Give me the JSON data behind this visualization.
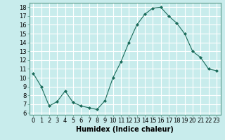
{
  "x": [
    0,
    1,
    2,
    3,
    4,
    5,
    6,
    7,
    8,
    9,
    10,
    11,
    12,
    13,
    14,
    15,
    16,
    17,
    18,
    19,
    20,
    21,
    22,
    23
  ],
  "y": [
    10.5,
    9.0,
    6.8,
    7.3,
    8.5,
    7.2,
    6.8,
    6.6,
    6.4,
    7.4,
    10.0,
    11.8,
    14.0,
    16.0,
    17.2,
    17.9,
    18.0,
    17.0,
    16.2,
    15.0,
    13.0,
    12.3,
    11.0,
    10.8
  ],
  "line_color": "#1a6b5a",
  "marker": "D",
  "marker_size": 2,
  "bg_color": "#c8ecec",
  "grid_color": "#ffffff",
  "xlabel": "Humidex (Indice chaleur)",
  "ylabel_ticks": [
    6,
    7,
    8,
    9,
    10,
    11,
    12,
    13,
    14,
    15,
    16,
    17,
    18
  ],
  "xlim": [
    -0.5,
    23.5
  ],
  "ylim": [
    5.8,
    18.5
  ],
  "xlabel_fontsize": 7,
  "tick_fontsize": 6
}
